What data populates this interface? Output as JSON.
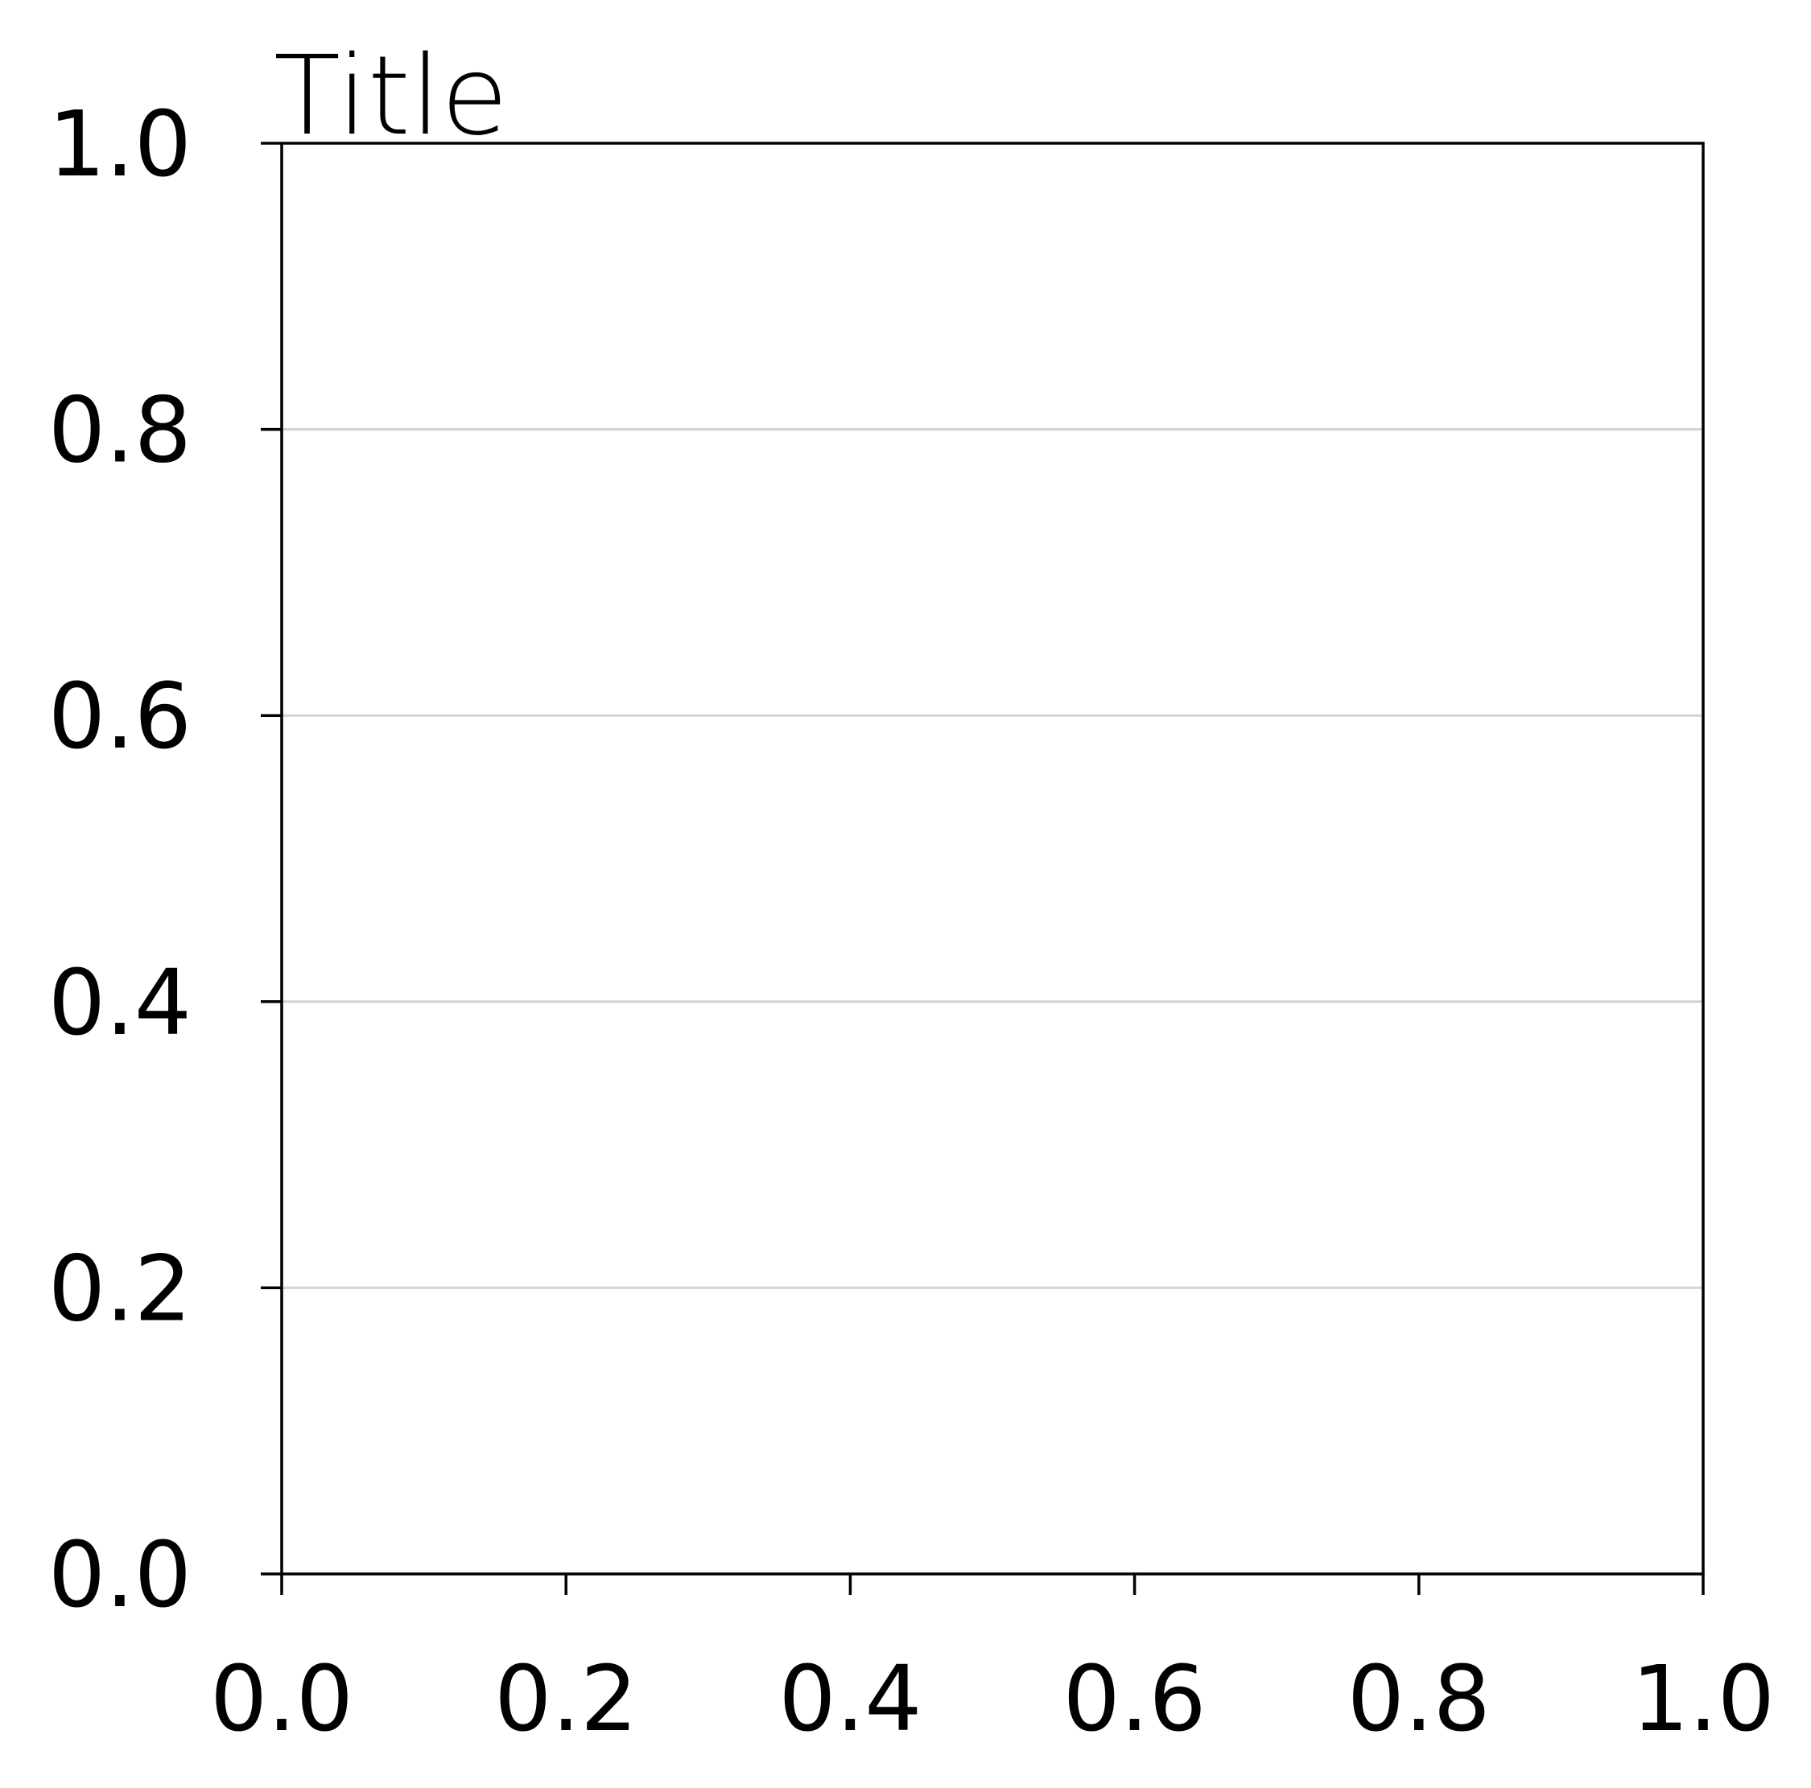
{
  "chart_data": {
    "type": "line",
    "title": "Title",
    "xlabel": "",
    "ylabel": "",
    "xlim": [
      0.0,
      1.0
    ],
    "ylim": [
      0.0,
      1.0
    ],
    "x_ticks": [
      0.0,
      0.2,
      0.4,
      0.6,
      0.8,
      1.0
    ],
    "x_tick_labels": [
      "0.0",
      "0.2",
      "0.4",
      "0.6",
      "0.8",
      "1.0"
    ],
    "y_ticks": [
      0.0,
      0.2,
      0.4,
      0.6,
      0.8,
      1.0
    ],
    "y_tick_labels": [
      "0.0",
      "0.2",
      "0.4",
      "0.6",
      "0.8",
      "1.0"
    ],
    "grid": "horizontal",
    "series": []
  },
  "colors": {
    "axis": "#000000",
    "grid": "#d3d3d3",
    "background": "#ffffff"
  }
}
